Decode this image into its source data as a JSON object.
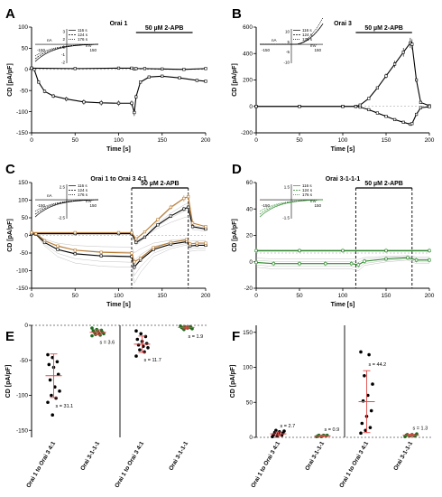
{
  "colors": {
    "black": "#000000",
    "grey": "#b0b0b0",
    "orange": "#b87a2e",
    "green": "#2e8b2e",
    "red": "#e04848",
    "darkgreen": "#1e6b1e"
  },
  "chart_data": [
    {
      "type": "line",
      "panel": "A",
      "title": "Orai 1",
      "xlabel": "Time [s]",
      "ylabel": "CD [pA/pF]",
      "xlim": [
        0,
        200
      ],
      "ylim": [
        -150,
        100
      ],
      "xticks": [
        "0",
        "50",
        "100",
        "150",
        "200"
      ],
      "yticks": [
        "-150",
        "-100",
        "-50",
        "0",
        "50",
        "100"
      ],
      "annotation": "50 µM 2-APB",
      "annotation_range": [
        120,
        185
      ],
      "series": [
        {
          "x": [
            0,
            3,
            8,
            15,
            25,
            40,
            60,
            80,
            100,
            115,
            118,
            120,
            125,
            135,
            150,
            170,
            190,
            200
          ],
          "values": [
            3,
            0,
            -30,
            -52,
            -63,
            -70,
            -77,
            -79,
            -80,
            -80,
            -102,
            -65,
            -30,
            -18,
            -16,
            -20,
            -26,
            -28
          ]
        },
        {
          "x": [
            0,
            50,
            100,
            115,
            118,
            120,
            130,
            150,
            175,
            200
          ],
          "values": [
            3,
            2,
            3,
            3,
            1,
            2,
            2,
            1,
            0,
            2
          ]
        }
      ],
      "inset": {
        "legend": [
          "116 s",
          "124 s",
          "176 s"
        ],
        "y_ticks": [
          "3",
          "2",
          "1",
          "-1",
          "-2"
        ],
        "y_unit": "nA",
        "x_ticks": [
          "-150",
          "150"
        ],
        "x_unit": "mV"
      }
    },
    {
      "type": "line",
      "panel": "B",
      "title": "Orai 3",
      "xlabel": "Time [s]",
      "ylabel": "CD [pA/pF]",
      "xlim": [
        0,
        200
      ],
      "ylim": [
        -200,
        600
      ],
      "xticks": [
        "0",
        "50",
        "100",
        "150",
        "200"
      ],
      "yticks": [
        "-200",
        "0",
        "200",
        "400",
        "600"
      ],
      "annotation": "50 µM 2-APB",
      "annotation_range": [
        115,
        180
      ],
      "series": [
        {
          "x": [
            0,
            50,
            100,
            115,
            120,
            130,
            140,
            150,
            160,
            170,
            178,
            180,
            185,
            190,
            200
          ],
          "values": [
            0,
            0,
            0,
            0,
            10,
            60,
            140,
            230,
            320,
            410,
            480,
            470,
            200,
            30,
            5
          ]
        },
        {
          "x": [
            0,
            50,
            100,
            115,
            120,
            130,
            140,
            150,
            160,
            170,
            178,
            180,
            185,
            190,
            200
          ],
          "values": [
            0,
            0,
            0,
            0,
            -5,
            -25,
            -50,
            -75,
            -100,
            -120,
            -135,
            -130,
            -60,
            -10,
            -3
          ]
        }
      ],
      "inset": {
        "legend": [
          "116 s",
          "124 s",
          "176 s"
        ],
        "y_ticks": [
          "10",
          "5",
          "-5",
          "-10"
        ],
        "y_unit": "nA",
        "x_ticks": [
          "-150",
          "150"
        ],
        "x_unit": "mV"
      }
    },
    {
      "type": "line",
      "panel": "C",
      "title": "Orai 1 to Orai 3 4:1",
      "xlabel": "Time [s]",
      "ylabel": "CD [pA/pF]",
      "xlim": [
        0,
        200
      ],
      "ylim": [
        -150,
        150
      ],
      "xticks": [
        "0",
        "50",
        "100",
        "150",
        "200"
      ],
      "yticks": [
        "-150",
        "-100",
        "-50",
        "0",
        "50",
        "100",
        "150"
      ],
      "annotation": "50 µM 2-APB",
      "annotation_range": [
        115,
        180
      ],
      "series": [
        {
          "x": [
            0,
            5,
            15,
            30,
            50,
            80,
            115,
            118,
            125,
            140,
            160,
            178,
            182,
            190,
            200
          ],
          "values": [
            5,
            3,
            -20,
            -40,
            -52,
            -58,
            -60,
            -90,
            -70,
            -40,
            -25,
            -18,
            -30,
            -28,
            -28
          ]
        },
        {
          "x": [
            0,
            50,
            100,
            115,
            120,
            130,
            145,
            160,
            175,
            180,
            185,
            200
          ],
          "values": [
            5,
            5,
            5,
            5,
            -20,
            -5,
            30,
            55,
            75,
            80,
            25,
            18
          ]
        },
        {
          "x": [
            0,
            5,
            15,
            30,
            50,
            80,
            115,
            118,
            125,
            140,
            160,
            178,
            182,
            190,
            200
          ],
          "values": [
            8,
            5,
            -15,
            -30,
            -42,
            -48,
            -50,
            -75,
            -65,
            -35,
            -20,
            -12,
            -24,
            -22,
            -22
          ]
        },
        {
          "x": [
            0,
            50,
            100,
            115,
            120,
            130,
            145,
            160,
            175,
            180,
            185,
            200
          ],
          "values": [
            8,
            8,
            8,
            8,
            -10,
            10,
            45,
            80,
            105,
            110,
            35,
            25
          ]
        }
      ],
      "inset": {
        "legend": [
          "116 s",
          "124 s",
          "176 s"
        ],
        "y_ticks": [
          "2.5",
          "-2.5"
        ],
        "y_unit": "nA",
        "x_ticks": [
          "-150",
          "150"
        ],
        "x_unit": "mV"
      }
    },
    {
      "type": "line",
      "panel": "D",
      "title": "Orai 3-1-1-1",
      "xlabel": "Time [s]",
      "ylabel": "CD [pA/pF]",
      "xlim": [
        0,
        200
      ],
      "ylim": [
        -30,
        60
      ],
      "xticks": [
        "0",
        "50",
        "100",
        "150",
        "200"
      ],
      "yticks": [
        "-20",
        "0",
        "20",
        "40",
        "60"
      ],
      "annotation": "50 µM 2-APB",
      "annotation_range": [
        115,
        180
      ],
      "series": [
        {
          "x": [
            0,
            20,
            50,
            80,
            110,
            118,
            125,
            150,
            175,
            185,
            200
          ],
          "values": [
            -8,
            -9,
            -9,
            -9,
            -9,
            -10,
            -7,
            -5,
            -4,
            -6,
            -6
          ]
        },
        {
          "x": [
            0,
            50,
            100,
            150,
            200
          ],
          "values": [
            2,
            2,
            2,
            2,
            2
          ]
        }
      ],
      "inset": {
        "legend": [
          "116 s",
          "124 s",
          "176 s"
        ],
        "y_ticks": [
          "1.5",
          "-1.5"
        ],
        "x_ticks": [
          "-150",
          "150"
        ],
        "x_unit": "mV"
      }
    },
    {
      "type": "scatter",
      "panel": "E",
      "ylabel": "CD [pA/pF]",
      "ylim": [
        -160,
        0
      ],
      "yticks": [
        "0",
        "-50",
        "-100",
        "-150"
      ],
      "categories": [
        "Orai 1 to Orai 3 4:1",
        "Orai 3-1-1-1",
        "Orai 1 to Orai 3 4:1",
        "Orai 3-1-1-1"
      ],
      "annotations": [
        "s = 31.1",
        "s = 3.6",
        "s = 11.7",
        "s = 1.9"
      ],
      "groups": [
        {
          "mean": -72,
          "sd": 31.1,
          "values": [
            -42,
            -46,
            -52,
            -56,
            -60,
            -70,
            -78,
            -88,
            -94,
            -100,
            -104,
            -110,
            -128
          ]
        },
        {
          "mean": -10,
          "sd": 3.6,
          "values": [
            -4,
            -6,
            -7,
            -8,
            -9,
            -10,
            -10,
            -11,
            -12,
            -13,
            -14,
            -15
          ]
        },
        {
          "mean": -27,
          "sd": 11.7,
          "values": [
            -8,
            -12,
            -16,
            -20,
            -23,
            -26,
            -28,
            -30,
            -32,
            -35,
            -38,
            -44
          ]
        },
        {
          "mean": -3,
          "sd": 1.9,
          "values": [
            -1,
            -2,
            -2,
            -3,
            -3,
            -3,
            -4,
            -4,
            -5,
            -6
          ]
        }
      ]
    },
    {
      "type": "scatter",
      "panel": "F",
      "ylabel": "CD [pA/pF]",
      "ylim": [
        0,
        160
      ],
      "yticks": [
        "0",
        "50",
        "100",
        "150"
      ],
      "categories": [
        "Orai 1 to Orai 3 4:1",
        "Orai 3-1-1-1",
        "Orai 1 to Orai 3 4:1",
        "Orai 3-1-1-1"
      ],
      "annotations": [
        "s = 2.7",
        "s = 0.9",
        "s = 44.2",
        "s = 1.3"
      ],
      "groups": [
        {
          "mean": 5,
          "sd": 2.7,
          "values": [
            1,
            2,
            3,
            4,
            5,
            6,
            7,
            8,
            9,
            10
          ]
        },
        {
          "mean": 2,
          "sd": 0.9,
          "values": [
            1,
            1,
            2,
            2,
            2,
            3,
            3,
            3
          ]
        },
        {
          "mean": 51,
          "sd": 44.2,
          "values": [
            6,
            10,
            14,
            20,
            30,
            38,
            52,
            60,
            76,
            88,
            118,
            122
          ]
        },
        {
          "mean": 3,
          "sd": 1.3,
          "values": [
            1,
            2,
            2,
            3,
            3,
            3,
            4,
            4,
            5
          ]
        }
      ]
    }
  ]
}
